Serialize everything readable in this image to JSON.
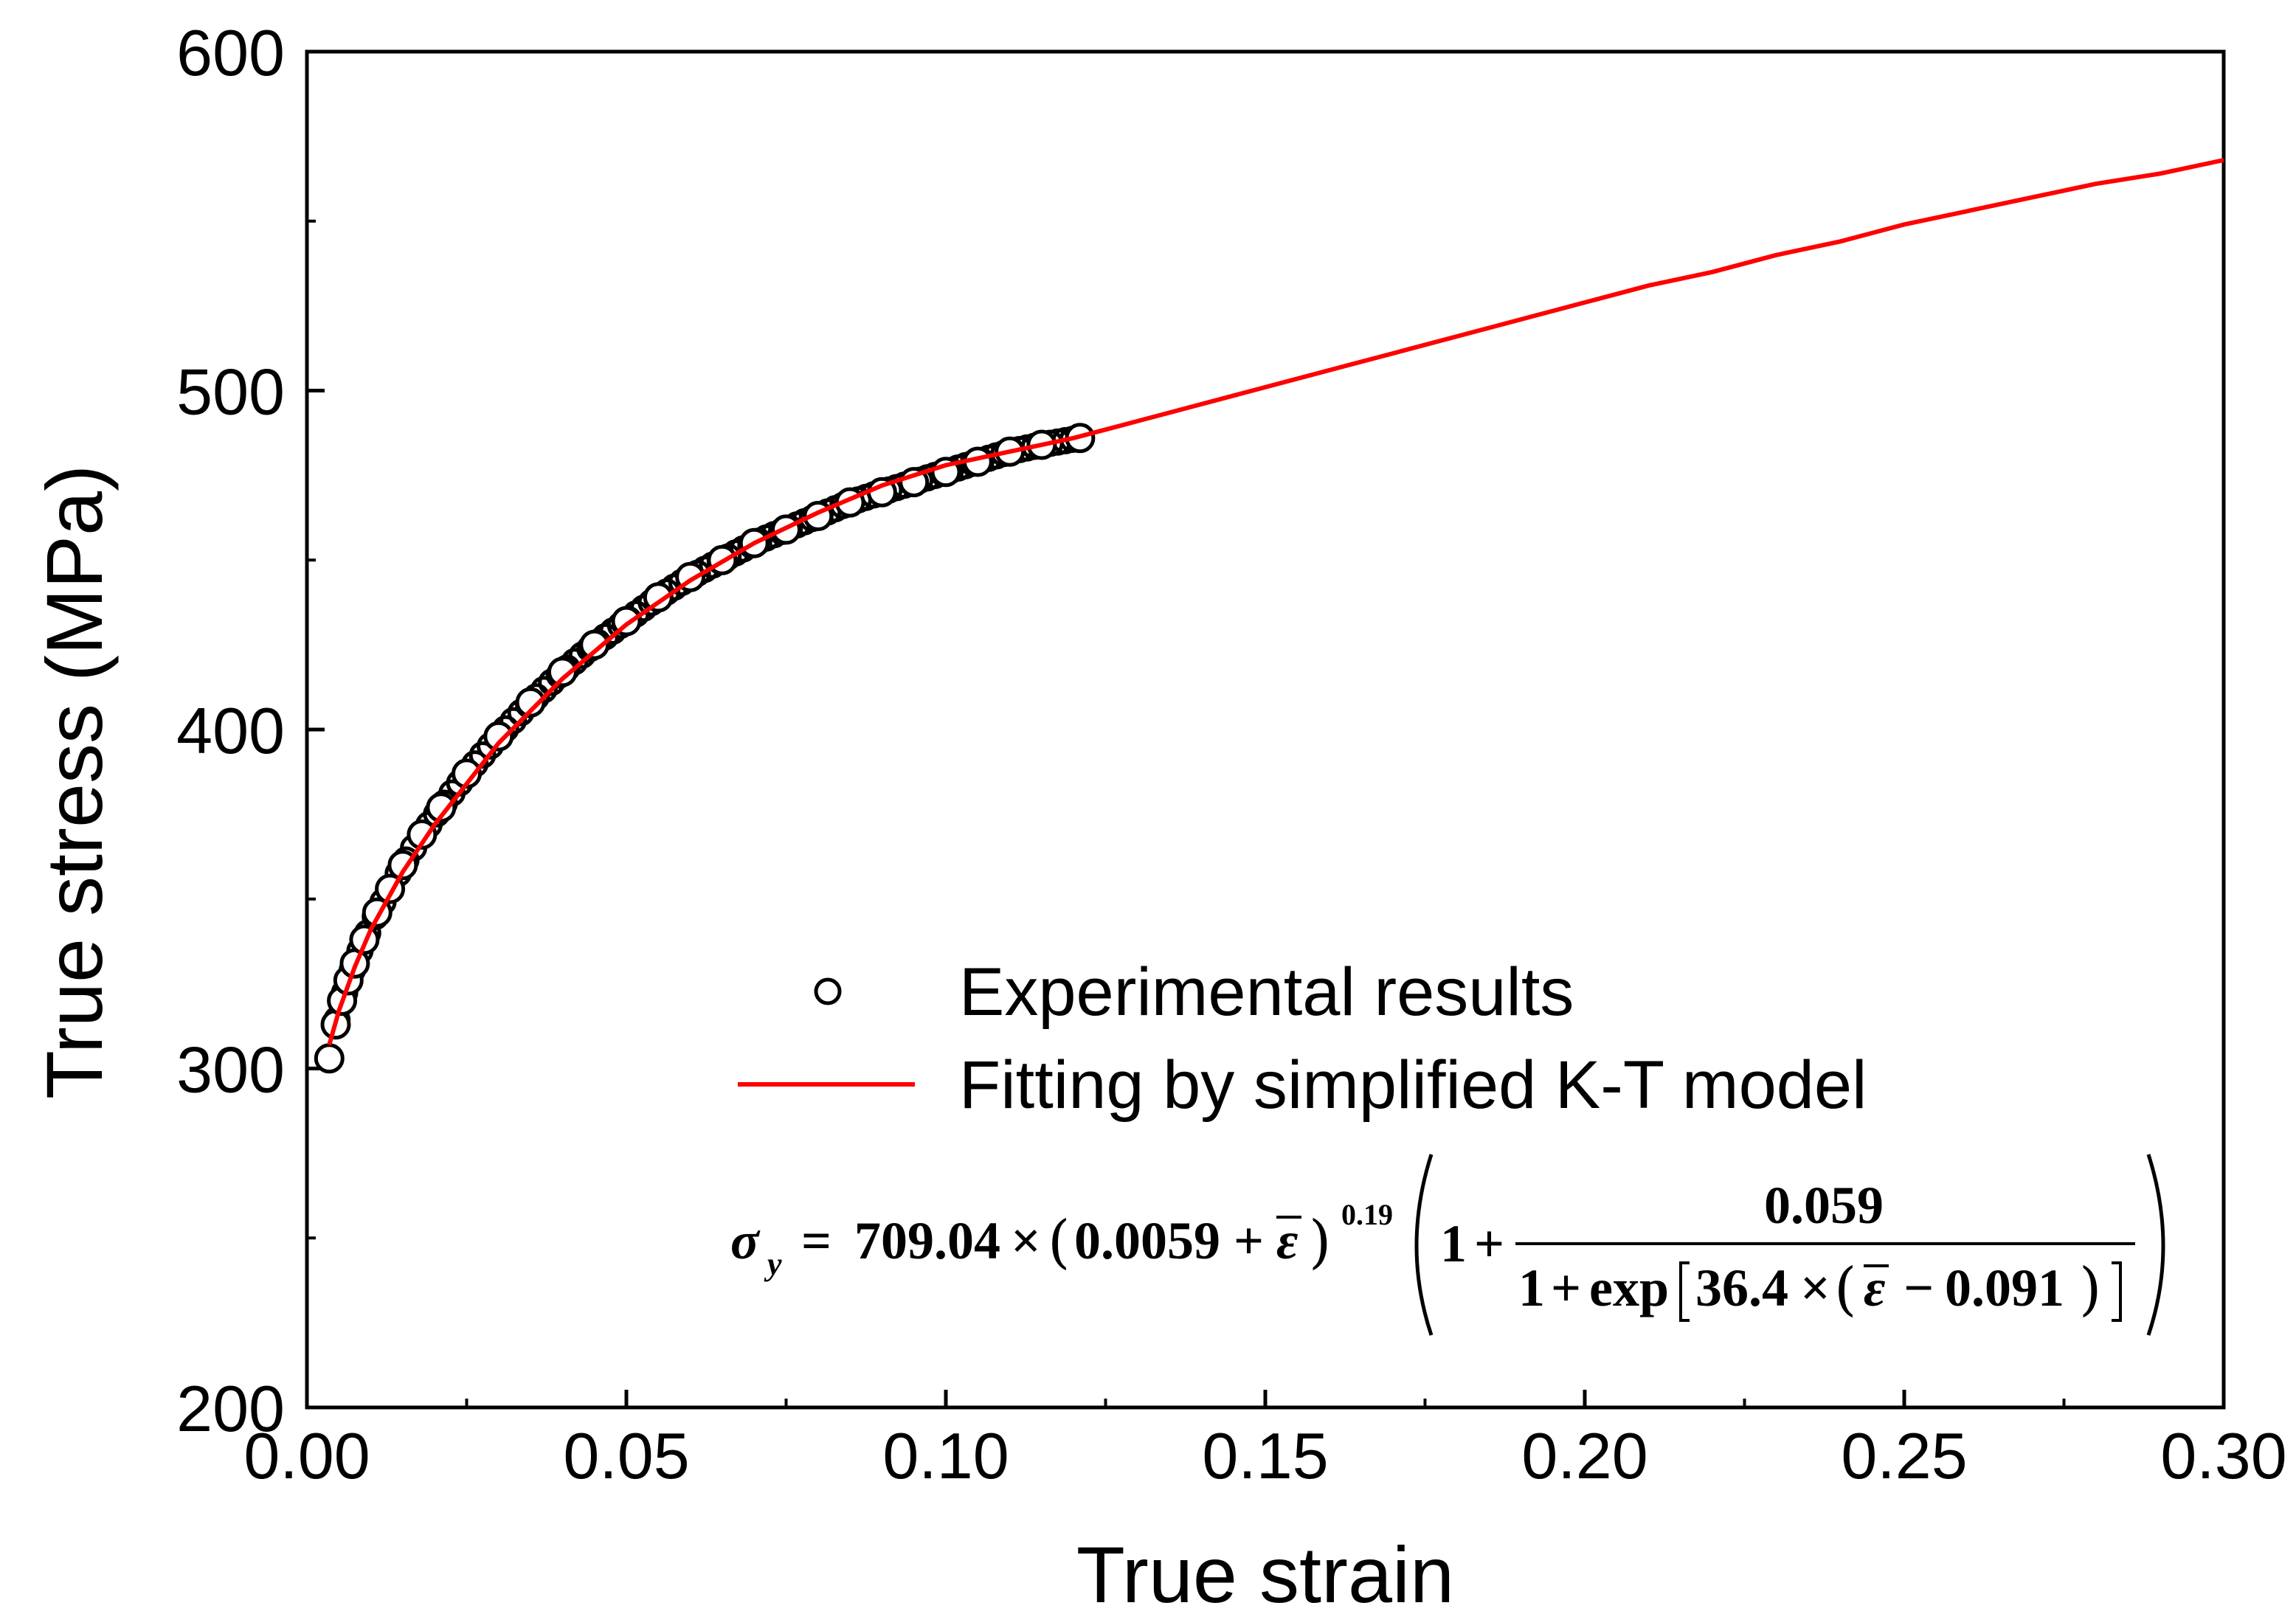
{
  "chart_data": {
    "type": "line",
    "title": "",
    "xlabel": "True strain",
    "ylabel": "True stress (MPa)",
    "xlim": [
      0.0,
      0.3
    ],
    "ylim": [
      200,
      600
    ],
    "x_ticks": [
      "0.00",
      "0.05",
      "0.10",
      "0.15",
      "0.20",
      "0.25",
      "0.30"
    ],
    "y_ticks": [
      "200",
      "300",
      "400",
      "500",
      "600"
    ],
    "x_tick_values": [
      0.0,
      0.05,
      0.1,
      0.15,
      0.2,
      0.25,
      0.3
    ],
    "y_tick_values": [
      200,
      300,
      400,
      500,
      600
    ],
    "grid": false,
    "legend_position": "lower-right",
    "series": [
      {
        "name": "Experimental results",
        "kind": "scatter",
        "marker": "open-circle",
        "color": "#000000",
        "x": [
          0.0035,
          0.0045,
          0.0055,
          0.0065,
          0.0075,
          0.009,
          0.011,
          0.013,
          0.015,
          0.018,
          0.021,
          0.025,
          0.03,
          0.035,
          0.04,
          0.045,
          0.05,
          0.055,
          0.06,
          0.065,
          0.07,
          0.075,
          0.08,
          0.085,
          0.09,
          0.095,
          0.1,
          0.105,
          0.11,
          0.115,
          0.121
        ],
        "y": [
          303,
          313,
          320,
          326,
          331,
          338,
          346,
          353,
          360,
          369,
          377,
          387,
          398,
          408,
          417,
          425,
          432,
          439,
          445,
          450,
          455,
          459,
          463,
          467,
          470,
          473,
          476,
          479,
          482,
          484,
          486
        ]
      },
      {
        "name": "Fitting by simplified K-T model",
        "kind": "line",
        "color": "#ff0000",
        "x": [
          0.0035,
          0.005,
          0.0075,
          0.01,
          0.015,
          0.02,
          0.03,
          0.04,
          0.05,
          0.06,
          0.07,
          0.08,
          0.09,
          0.1,
          0.11,
          0.12,
          0.13,
          0.14,
          0.15,
          0.16,
          0.17,
          0.18,
          0.19,
          0.2,
          0.21,
          0.22,
          0.23,
          0.24,
          0.25,
          0.26,
          0.27,
          0.28,
          0.29,
          0.3
        ],
        "y": [
          307,
          317,
          330,
          341,
          358,
          372,
          396,
          415,
          431,
          444,
          455,
          464,
          472,
          478,
          482,
          486,
          491,
          496,
          501,
          506,
          511,
          516,
          521,
          526,
          531,
          535,
          540,
          544,
          549,
          553,
          557,
          561,
          564,
          568
        ]
      }
    ],
    "annotations": [
      {
        "type": "equation",
        "parts": {
          "lhs": "σ",
          "lhs_sub": "y",
          "eq": "=",
          "coef": "709.04",
          "times1": "×",
          "base_const": "0.0059",
          "plus1": "+",
          "eps1": "ε",
          "exponent": "0.19",
          "one": "1",
          "plus2": "+",
          "numerator": "0.059",
          "den_one": "1",
          "plus3": "+",
          "exp_word": "exp",
          "k": "36.4",
          "times2": "×",
          "eps2": "ε",
          "minus": "−",
          "shift": "0.091",
          "lparen": "(",
          "rparen": ")",
          "lbracket": "[",
          "rbracket": "]"
        }
      }
    ]
  }
}
